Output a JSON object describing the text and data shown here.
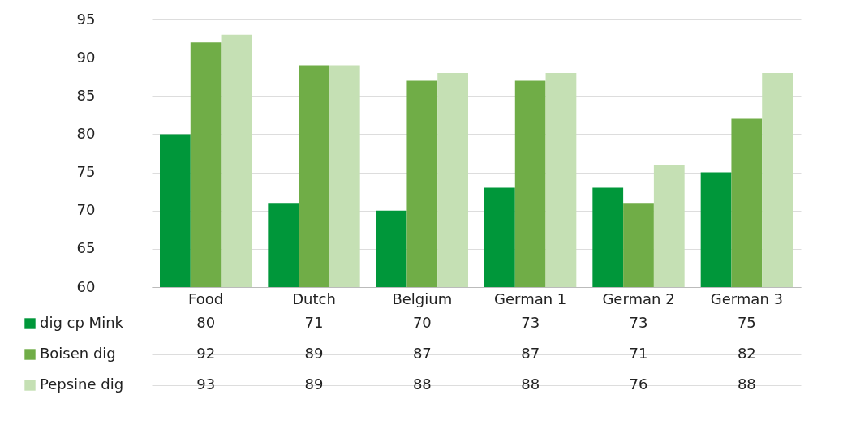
{
  "chart_data": {
    "type": "bar",
    "categories": [
      "Food",
      "Dutch",
      "Belgium",
      "German 1",
      "German 2",
      "German 3"
    ],
    "series": [
      {
        "name": "dig cp Mink",
        "color": "#00973a",
        "values": [
          80,
          71,
          70,
          73,
          73,
          75
        ]
      },
      {
        "name": "Boisen dig",
        "color": "#70ad47",
        "values": [
          92,
          89,
          87,
          87,
          71,
          82
        ]
      },
      {
        "name": "Pepsine dig",
        "color": "#c5e0b4",
        "values": [
          93,
          89,
          88,
          88,
          76,
          88
        ]
      }
    ],
    "ylim": [
      60,
      95
    ],
    "yticks": [
      60,
      65,
      70,
      75,
      80,
      85,
      90,
      95
    ],
    "grid": "y",
    "legend": "bottom left",
    "data_labels": true
  }
}
